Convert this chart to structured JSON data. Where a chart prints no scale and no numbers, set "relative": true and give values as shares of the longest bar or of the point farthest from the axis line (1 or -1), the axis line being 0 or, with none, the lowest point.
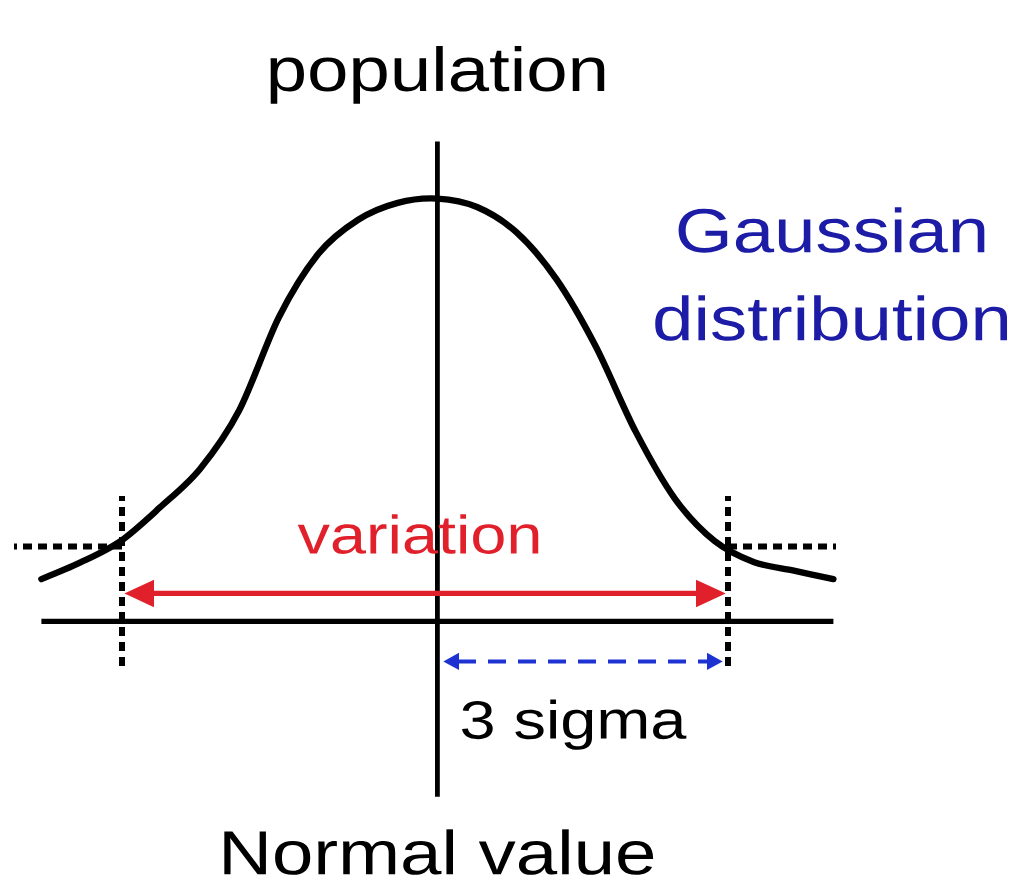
{
  "chart_data": {
    "type": "line",
    "ylabel": "population",
    "xlabel": "Normal value",
    "annotations": [
      "Gaussian distribution",
      "variation",
      "3 sigma"
    ],
    "categories": [
      null,
      null,
      null,
      null,
      null,
      null,
      null,
      null,
      null,
      null,
      null,
      null,
      null,
      null,
      null,
      null,
      null,
      null,
      null,
      null,
      null
    ],
    "values": [
      0.1,
      0.14,
      0.19,
      0.27,
      0.36,
      0.5,
      0.72,
      0.87,
      0.95,
      0.99,
      1.0,
      0.98,
      0.92,
      0.81,
      0.65,
      0.45,
      0.29,
      0.19,
      0.14,
      0.12,
      0.1
    ],
    "color": "#000000",
    "relative": true
  }
}
